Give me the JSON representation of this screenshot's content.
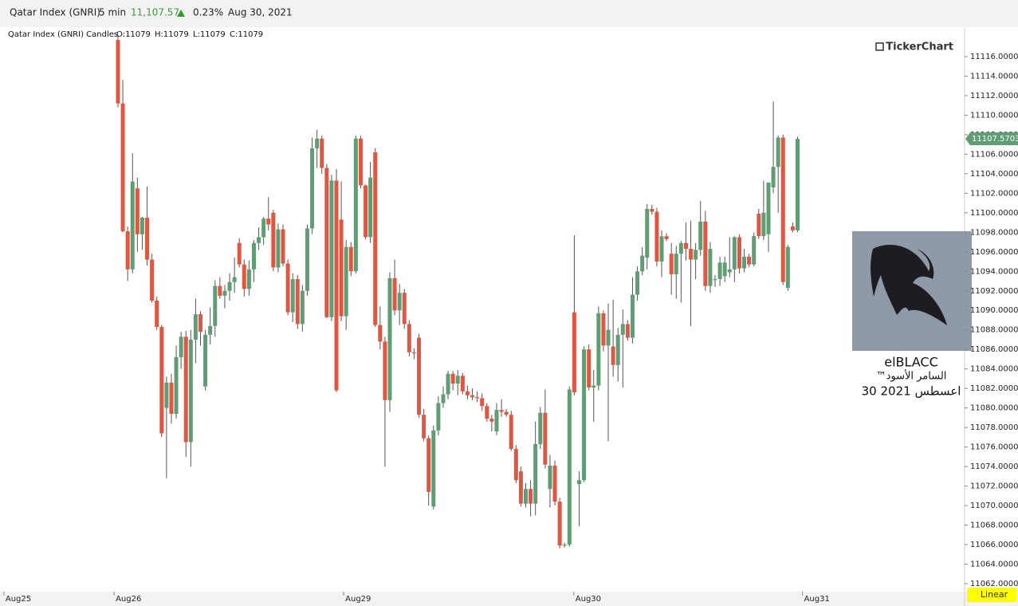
{
  "header": {
    "symbol": "Qatar Index  (GNRI)",
    "interval": "5 min",
    "price": "11,107.57",
    "change": "0.23%",
    "date": "Aug 30, 2021"
  },
  "legend": {
    "title": "Qatar Index (GNRI) Candles",
    "open": "O:11079",
    "high": "H:11079",
    "low": "L:11079",
    "close": "C:11079"
  },
  "watermark": "TickerChart",
  "profile": {
    "name": "elBLACC",
    "subtitle": "السامر الأسود™",
    "date": "اعسطس 2021 30"
  },
  "scale_mode": "Linear",
  "chart_data": {
    "type": "candlestick",
    "up_color": "#5f9d74",
    "down_color": "#df5642",
    "ylim": [
      11061.18,
      11118.94
    ],
    "yticks": [
      {
        "value": 11116,
        "label": "11116.0000"
      },
      {
        "value": 11114,
        "label": "11114.0000"
      },
      {
        "value": 11112,
        "label": "11112.0000"
      },
      {
        "value": 11110,
        "label": "11110.0000"
      },
      {
        "value": 11108,
        "label": "11108.0000"
      },
      {
        "value": 11106,
        "label": "11106.0000"
      },
      {
        "value": 11104,
        "label": "11104.0000"
      },
      {
        "value": 11102,
        "label": "11102.0000"
      },
      {
        "value": 11100,
        "label": "11100.0000"
      },
      {
        "value": 11098,
        "label": "11098.0000"
      },
      {
        "value": 11096,
        "label": "11096.0000"
      },
      {
        "value": 11094,
        "label": "11094.0000"
      },
      {
        "value": 11092,
        "label": "11092.0000"
      },
      {
        "value": 11090,
        "label": "11090.0000"
      },
      {
        "value": 11088,
        "label": "11088.0000"
      },
      {
        "value": 11086,
        "label": "11086.0000"
      },
      {
        "value": 11084,
        "label": "11084.0000"
      },
      {
        "value": 11082,
        "label": "11082.0000"
      },
      {
        "value": 11080,
        "label": "11080.0000"
      },
      {
        "value": 11078,
        "label": "11078.0000"
      },
      {
        "value": 11076,
        "label": "11076.0000"
      },
      {
        "value": 11074,
        "label": "11074.0000"
      },
      {
        "value": 11072,
        "label": "11072.0000"
      },
      {
        "value": 11070,
        "label": "11070.0000"
      },
      {
        "value": 11068,
        "label": "11068.0000"
      },
      {
        "value": 11066,
        "label": "11066.0000"
      },
      {
        "value": 11064,
        "label": "11064.0000"
      },
      {
        "value": 11062,
        "label": "11062.0000"
      }
    ],
    "xlim": [
      -24.3,
      174.4
    ],
    "xticks": [
      {
        "value": -23.5,
        "label": "Aug25"
      },
      {
        "value": -0.8,
        "label": "Aug26"
      },
      {
        "value": 46.5,
        "label": "Aug29"
      },
      {
        "value": 93.9,
        "label": "Aug30"
      },
      {
        "value": 141,
        "label": "Aug31"
      }
    ],
    "last_price": {
      "value": 11107.5703,
      "label": "11107.5703"
    },
    "candles": [
      [
        11117.7,
        11118.2,
        11110.8,
        11111.2
      ],
      [
        11111.2,
        11113.6,
        11098.0,
        11098.1
      ],
      [
        11098.1,
        11098.6,
        11093.0,
        11094.2
      ],
      [
        11094.2,
        11106.1,
        11093.8,
        11103.2
      ],
      [
        11102.5,
        11103.6,
        11096.0,
        11097.8
      ],
      [
        11097.8,
        11099.6,
        11096.2,
        11099.5
      ],
      [
        11099.5,
        11102.7,
        11094.6,
        11095.2
      ],
      [
        11095.2,
        11095.8,
        11090.8,
        11091.0
      ],
      [
        11091.0,
        11091.4,
        11088.0,
        11088.3
      ],
      [
        11088.3,
        11088.5,
        11077.0,
        11077.4
      ],
      [
        11080.0,
        11083.2,
        11072.8,
        11082.6
      ],
      [
        11082.6,
        11083.5,
        11078.4,
        11079.4
      ],
      [
        11079.4,
        11086.4,
        11078.9,
        11085.2
      ],
      [
        11085.2,
        11087.8,
        11084.0,
        11087.3
      ],
      [
        11087.3,
        11087.9,
        11075.0,
        11076.5
      ],
      [
        11076.5,
        11088.0,
        11074.0,
        11087.0
      ],
      [
        11087.0,
        11091.2,
        11084.6,
        11089.6
      ],
      [
        11089.6,
        11089.9,
        11086.4,
        11087.8
      ],
      [
        11082.2,
        11088.0,
        11081.8,
        11087.5
      ],
      [
        11087.5,
        11090.3,
        11086.5,
        11088.4
      ],
      [
        11088.4,
        11093.1,
        11087.3,
        11092.5
      ],
      [
        11092.5,
        11093.4,
        11091.2,
        11091.5
      ],
      [
        11091.5,
        11092.6,
        11090.2,
        11092.0
      ],
      [
        11092.0,
        11093.8,
        11091.0,
        11092.9
      ],
      [
        11092.9,
        11095.4,
        11091.8,
        11093.4
      ],
      [
        11096.9,
        11097.4,
        11094.4,
        11094.7
      ],
      [
        11094.7,
        11095.2,
        11091.4,
        11092.2
      ],
      [
        11092.2,
        11095.1,
        11091.5,
        11094.2
      ],
      [
        11094.2,
        11097.2,
        11092.9,
        11096.9
      ],
      [
        11096.9,
        11098.5,
        11096.2,
        11097.5
      ],
      [
        11097.5,
        11099.6,
        11096.7,
        11099.4
      ],
      [
        11099.4,
        11101.6,
        11098.2,
        11098.8
      ],
      [
        11100.0,
        11100.3,
        11094.0,
        11094.4
      ],
      [
        11094.4,
        11098.9,
        11093.9,
        11098.3
      ],
      [
        11098.3,
        11098.8,
        11094.5,
        11094.8
      ],
      [
        11094.8,
        11095.2,
        11089.5,
        11089.8
      ],
      [
        11089.8,
        11093.8,
        11088.8,
        11093.2
      ],
      [
        11093.2,
        11093.6,
        11088.1,
        11088.6
      ],
      [
        11088.6,
        11092.6,
        11087.8,
        11092.0
      ],
      [
        11092.0,
        11098.8,
        11091.5,
        11098.4
      ],
      [
        11098.4,
        11107.7,
        11097.8,
        11106.6
      ],
      [
        11106.6,
        11108.5,
        11104.6,
        11107.6
      ],
      [
        11107.6,
        11107.9,
        11104.0,
        11104.6
      ],
      [
        11104.6,
        11105.0,
        11089.2,
        11089.3
      ],
      [
        11089.3,
        11103.9,
        11088.9,
        11103.3
      ],
      [
        11103.3,
        11104.5,
        11081.6,
        11081.8
      ],
      [
        11099.3,
        11103.2,
        11088.9,
        11089.4
      ],
      [
        11089.4,
        11097.2,
        11088.0,
        11096.5
      ],
      [
        11096.5,
        11097.0,
        11093.5,
        11094.0
      ],
      [
        11094.0,
        11107.9,
        11093.8,
        11107.6
      ],
      [
        11107.6,
        11107.9,
        11102.5,
        11102.8
      ],
      [
        11102.8,
        11102.9,
        11097.3,
        11097.5
      ],
      [
        11097.5,
        11105.2,
        11096.9,
        11103.6
      ],
      [
        11106.2,
        11106.6,
        11088.3,
        11088.5
      ],
      [
        11088.5,
        11090.4,
        11086.0,
        11086.8
      ],
      [
        11086.8,
        11087.3,
        11074.0,
        11080.8
      ],
      [
        11080.8,
        11093.9,
        11079.6,
        11093.3
      ],
      [
        11093.3,
        11095.2,
        11089.5,
        11090.0
      ],
      [
        11090.0,
        11092.7,
        11088.5,
        11091.8
      ],
      [
        11091.8,
        11092.2,
        11088.1,
        11088.6
      ],
      [
        11088.6,
        11089.0,
        11085.3,
        11085.7
      ],
      [
        11085.7,
        11086.1,
        11085.0,
        11085.6
      ],
      [
        11087.2,
        11087.6,
        11079.0,
        11079.3
      ],
      [
        11079.3,
        11079.9,
        11076.6,
        11076.9
      ],
      [
        11076.9,
        11077.2,
        11070.0,
        11071.4
      ],
      [
        11069.9,
        11078.2,
        11069.6,
        11077.7
      ],
      [
        11077.7,
        11081.2,
        11077.2,
        11080.5
      ],
      [
        11080.5,
        11082.2,
        11080.0,
        11081.4
      ],
      [
        11081.4,
        11083.8,
        11080.9,
        11083.5
      ],
      [
        11083.5,
        11083.8,
        11081.8,
        11082.5
      ],
      [
        11082.5,
        11083.9,
        11081.3,
        11083.3
      ],
      [
        11083.3,
        11083.6,
        11081.4,
        11081.7
      ],
      [
        11081.7,
        11082.3,
        11080.9,
        11081.3
      ],
      [
        11081.3,
        11082.0,
        11080.8,
        11081.1
      ],
      [
        11081.1,
        11081.7,
        11080.6,
        11081.0
      ],
      [
        11081.0,
        11081.5,
        11079.7,
        11080.2
      ],
      [
        11080.2,
        11080.5,
        11078.6,
        11078.9
      ],
      [
        11078.9,
        11079.3,
        11077.6,
        11078.6
      ],
      [
        11077.6,
        11080.5,
        11077.2,
        11079.8
      ],
      [
        11079.8,
        11080.9,
        11079.1,
        11079.6
      ],
      [
        11079.6,
        11079.9,
        11079.1,
        11079.3
      ],
      [
        11079.3,
        11079.7,
        11075.6,
        11075.8
      ],
      [
        11075.8,
        11076.2,
        11072.3,
        11072.6
      ],
      [
        11073.5,
        11074.0,
        11069.9,
        11070.2
      ],
      [
        11070.2,
        11072.3,
        11069.8,
        11071.7
      ],
      [
        11071.7,
        11072.6,
        11068.9,
        11070.2
      ],
      [
        11070.2,
        11078.6,
        11069.0,
        11076.3
      ],
      [
        11076.3,
        11080.1,
        11075.8,
        11079.5
      ],
      [
        11079.5,
        11081.9,
        11073.8,
        11074.2
      ],
      [
        11071.7,
        11075.2,
        11069.8,
        11074.1
      ],
      [
        11074.1,
        11074.6,
        11070.0,
        11070.4
      ],
      [
        11070.4,
        11070.8,
        11065.6,
        11065.9
      ],
      [
        11065.9,
        11066.2,
        11065.7,
        11066.0
      ],
      [
        11066.0,
        11082.2,
        11065.8,
        11081.9
      ],
      [
        11089.8,
        11097.7,
        11081.3,
        11081.6
      ],
      [
        11072.2,
        11073.5,
        11067.9,
        11072.6
      ],
      [
        11072.6,
        11086.3,
        11072.4,
        11086.0
      ],
      [
        11086.0,
        11086.5,
        11081.8,
        11082.1
      ],
      [
        11082.1,
        11083.9,
        11078.6,
        11082.3
      ],
      [
        11082.3,
        11090.4,
        11081.8,
        11089.7
      ],
      [
        11089.7,
        11090.0,
        11085.8,
        11086.4
      ],
      [
        11086.4,
        11090.7,
        11076.6,
        11088.0
      ],
      [
        11086.3,
        11091.1,
        11083.2,
        11084.4
      ],
      [
        11084.4,
        11088.2,
        11082.7,
        11087.5
      ],
      [
        11087.5,
        11090.1,
        11082.1,
        11088.6
      ],
      [
        11088.6,
        11089.0,
        11086.9,
        11087.2
      ],
      [
        11087.2,
        11093.4,
        11086.6,
        11091.6
      ],
      [
        11091.6,
        11094.5,
        11091.0,
        11094.0
      ],
      [
        11094.0,
        11096.5,
        11093.6,
        11095.6
      ],
      [
        11095.4,
        11100.9,
        11094.2,
        11100.4
      ],
      [
        11100.4,
        11100.8,
        11099.8,
        11100.1
      ],
      [
        11100.1,
        11100.5,
        11094.5,
        11095.0
      ],
      [
        11095.0,
        11098.2,
        11093.4,
        11097.6
      ],
      [
        11097.6,
        11097.9,
        11097.1,
        11097.3
      ],
      [
        11095.8,
        11096.9,
        11091.6,
        11093.7
      ],
      [
        11093.7,
        11096.6,
        11091.2,
        11095.8
      ],
      [
        11095.8,
        11097.1,
        11090.8,
        11096.9
      ],
      [
        11096.9,
        11099.0,
        11095.1,
        11096.3
      ],
      [
        11096.3,
        11099.2,
        11088.4,
        11095.2
      ],
      [
        11095.2,
        11096.9,
        11093.2,
        11096.2
      ],
      [
        11096.2,
        11101.2,
        11095.6,
        11099.1
      ],
      [
        11099.1,
        11100.2,
        11092.0,
        11092.5
      ],
      [
        11092.5,
        11097.0,
        11091.8,
        11096.3
      ],
      [
        11093.1,
        11093.6,
        11092.4,
        11093.2
      ],
      [
        11093.2,
        11095.5,
        11092.5,
        11094.9
      ],
      [
        11093.5,
        11095.5,
        11092.9,
        11094.9
      ],
      [
        11093.9,
        11097.5,
        11093.4,
        11094.2
      ],
      [
        11094.2,
        11097.6,
        11092.9,
        11097.5
      ],
      [
        11097.5,
        11097.8,
        11093.8,
        11094.3
      ],
      [
        11094.3,
        11096.3,
        11093.9,
        11095.5
      ],
      [
        11095.5,
        11095.8,
        11094.4,
        11094.7
      ],
      [
        11094.7,
        11098.0,
        11094.5,
        11097.6
      ],
      [
        11099.9,
        11100.4,
        11097.3,
        11097.6
      ],
      [
        11097.6,
        11103.3,
        11097.2,
        11100.0
      ],
      [
        11097.8,
        11102.8,
        11096.0,
        11103.1
      ],
      [
        11102.6,
        11111.4,
        11102.0,
        11104.7
      ],
      [
        11104.7,
        11107.9,
        11100.0,
        11107.7
      ],
      [
        11107.7,
        11108.0,
        11092.6,
        11092.9
      ],
      [
        11092.3,
        11096.7,
        11092.0,
        11096.5
      ],
      [
        11098.6,
        11099.0,
        11098.0,
        11098.2
      ],
      [
        11098.2,
        11107.8,
        11098.0,
        11107.57
      ]
    ]
  }
}
